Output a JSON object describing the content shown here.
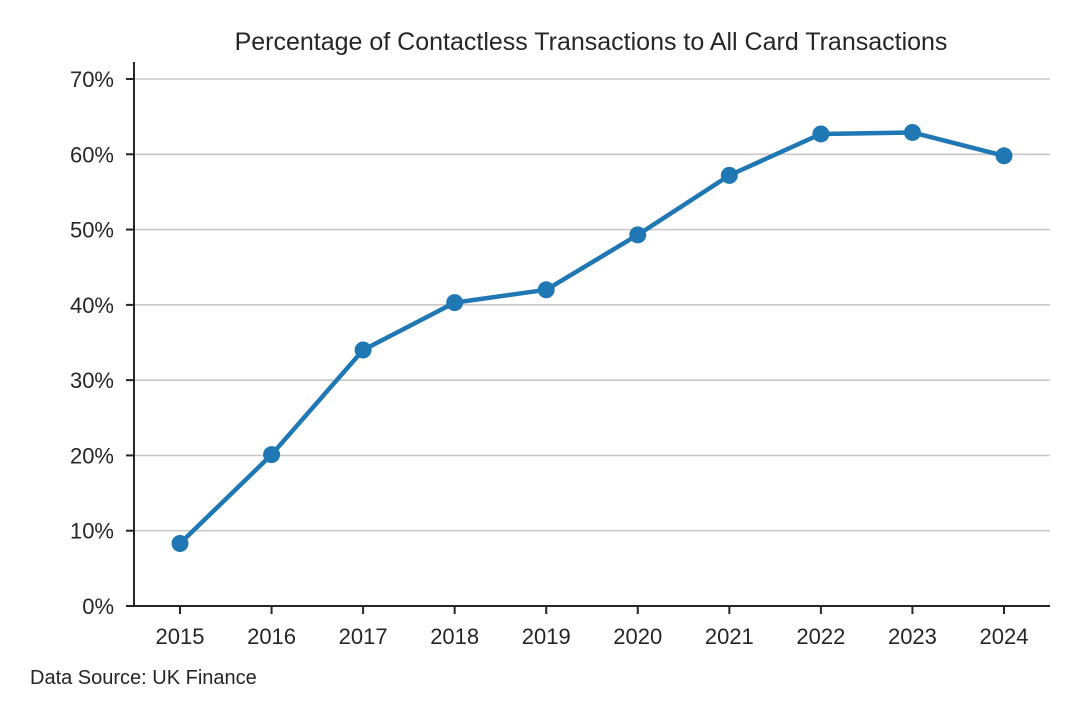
{
  "chart_data": {
    "type": "line",
    "title": "Percentage of Contactless Transactions to All Card Transactions",
    "xlabel": "",
    "ylabel": "",
    "categories": [
      "2015",
      "2016",
      "2017",
      "2018",
      "2019",
      "2020",
      "2021",
      "2022",
      "2023",
      "2024"
    ],
    "series": [
      {
        "values": [
          8.3,
          20.1,
          34.0,
          40.3,
          42.0,
          49.3,
          57.2,
          62.7,
          62.9,
          59.8
        ]
      }
    ],
    "ylim": [
      0,
      70
    ],
    "yticks": [
      0,
      10,
      20,
      30,
      40,
      50,
      60,
      70
    ],
    "ytick_labels": [
      "0%",
      "10%",
      "20%",
      "30%",
      "40%",
      "50%",
      "60%",
      "70%"
    ],
    "y_gridlines": true,
    "x_gridlines": false,
    "legend": "none",
    "line_color": "#1f77b4"
  },
  "footer": {
    "source_text": "Data Source: UK Finance"
  }
}
